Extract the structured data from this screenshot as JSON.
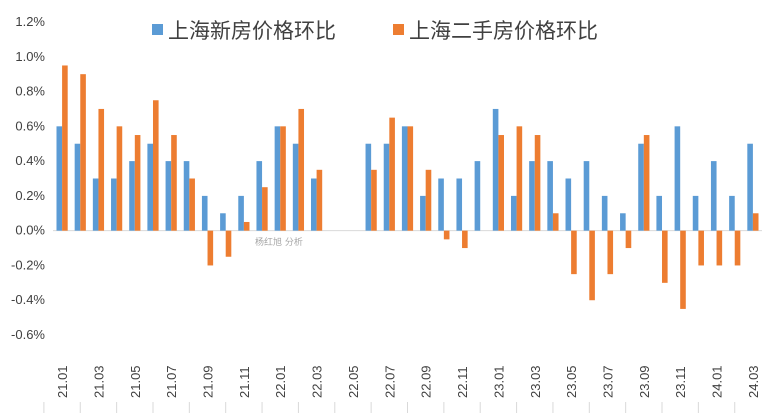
{
  "chart_data": {
    "type": "bar",
    "title": "",
    "xlabel": "",
    "ylabel": "",
    "ylim": [
      -0.006,
      0.012
    ],
    "yticks": [
      -0.006,
      -0.004,
      -0.002,
      0.0,
      0.002,
      0.004,
      0.006,
      0.008,
      0.01,
      0.012
    ],
    "ytick_labels": [
      "-0.6%",
      "-0.4%",
      "-0.2%",
      "0.0%",
      "0.2%",
      "0.4%",
      "0.6%",
      "0.8%",
      "1.0%",
      "1.2%"
    ],
    "categories": [
      "21.01",
      "21.02",
      "21.03",
      "21.04",
      "21.05",
      "21.06",
      "21.07",
      "21.08",
      "21.09",
      "21.10",
      "21.11",
      "21.12",
      "22.01",
      "22.02",
      "22.03",
      "22.04",
      "22.05",
      "22.06",
      "22.07",
      "22.08",
      "22.09",
      "22.10",
      "22.11",
      "22.12",
      "23.01",
      "23.02",
      "23.03",
      "23.04",
      "23.05",
      "23.06",
      "23.07",
      "23.08",
      "23.09",
      "23.10",
      "23.11",
      "23.12",
      "24.01",
      "24.02",
      "24.03"
    ],
    "xtick_labels": [
      "21.01",
      "",
      "21.03",
      "",
      "21.05",
      "",
      "21.07",
      "",
      "21.09",
      "",
      "21.11",
      "",
      "22.01",
      "",
      "22.03",
      "",
      "22.05",
      "",
      "22.07",
      "",
      "22.09",
      "",
      "22.11",
      "",
      "23.01",
      "",
      "23.03",
      "",
      "23.05",
      "",
      "23.07",
      "",
      "23.09",
      "",
      "23.11",
      "",
      "24.01",
      "",
      "24.03"
    ],
    "series": [
      {
        "name": "上海新房价格环比",
        "color": "#5B9BD5",
        "values": [
          0.006,
          0.005,
          0.003,
          0.003,
          0.004,
          0.005,
          0.004,
          0.004,
          0.002,
          0.001,
          0.002,
          0.004,
          0.006,
          0.005,
          0.003,
          null,
          null,
          0.005,
          0.005,
          0.006,
          0.002,
          0.003,
          0.003,
          0.004,
          0.007,
          0.002,
          0.004,
          0.004,
          0.003,
          0.004,
          0.002,
          0.001,
          0.005,
          0.002,
          0.006,
          0.002,
          0.004,
          0.002,
          0.005
        ]
      },
      {
        "name": "上海二手房价格环比",
        "color": "#ED7D31",
        "values": [
          0.0095,
          0.009,
          0.007,
          0.006,
          0.0055,
          0.0075,
          0.0055,
          0.003,
          -0.002,
          -0.0015,
          0.0005,
          0.0025,
          0.006,
          0.007,
          0.0035,
          null,
          null,
          0.0035,
          0.0065,
          0.006,
          0.0035,
          -0.0005,
          -0.001,
          null,
          0.0055,
          0.006,
          0.0055,
          0.001,
          -0.0025,
          -0.004,
          -0.0025,
          -0.001,
          0.0055,
          -0.003,
          -0.0045,
          -0.002,
          -0.002,
          -0.002,
          0.001
        ]
      }
    ],
    "legend_position": "top",
    "annotation": "杨红旭 分析"
  }
}
